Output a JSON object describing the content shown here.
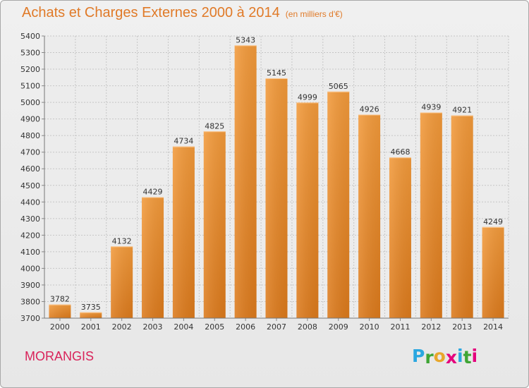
{
  "header": {
    "title": "Achats et Charges Externes 2000 à 2014",
    "subtitle": "(en milliers d'€)"
  },
  "footer": {
    "commune": "MORANGIS",
    "logo_letters": [
      "P",
      "r",
      "o",
      "x",
      "i",
      "t",
      "i"
    ],
    "logo_colors": [
      "#2aa7e0",
      "#3fa535",
      "#e8a72b",
      "#e4007c",
      "#2aa7e0",
      "#3fa535",
      "#e4007c"
    ]
  },
  "chart_data": {
    "type": "bar",
    "categories": [
      "2000",
      "2001",
      "2002",
      "2003",
      "2004",
      "2005",
      "2006",
      "2007",
      "2008",
      "2009",
      "2010",
      "2011",
      "2012",
      "2013",
      "2014"
    ],
    "values": [
      3782,
      3735,
      4132,
      4429,
      4734,
      4825,
      5343,
      5145,
      4999,
      5065,
      4926,
      4668,
      4939,
      4921,
      4249
    ],
    "title": "Achats et Charges Externes 2000 à 2014",
    "ylim": [
      3700,
      5400
    ],
    "yticks": [
      3700,
      3800,
      3900,
      4000,
      4100,
      4200,
      4300,
      4400,
      4500,
      4600,
      4700,
      4800,
      4900,
      5000,
      5100,
      5200,
      5300,
      5400
    ],
    "grid": true,
    "bar_color": "#f29a3b",
    "bar_color_dark": "#dc7a1c"
  }
}
